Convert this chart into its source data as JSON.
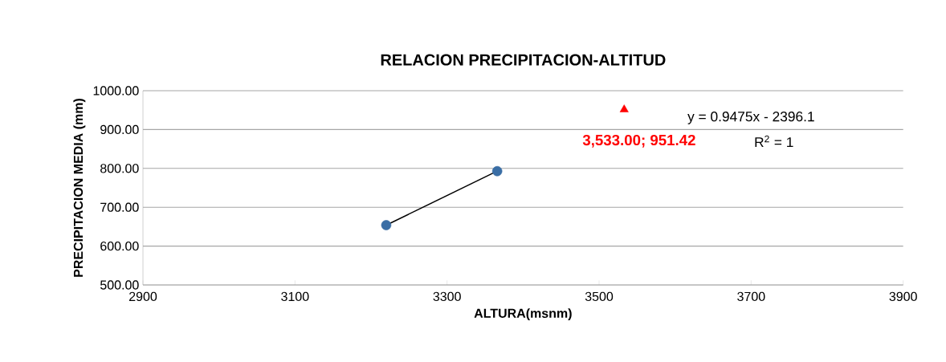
{
  "chart_data": {
    "type": "scatter",
    "title": "RELACION PRECIPITACION-ALTITUD",
    "xlabel": "ALTURA(msnm)",
    "ylabel": "PRECIPITACION MEDIA (mm)",
    "series": [
      {
        "color": "#3a6ea5",
        "marker": "circle",
        "x": [
          3220,
          3366
        ],
        "values": [
          654,
          793
        ]
      },
      {
        "type": "line",
        "color": "#000000",
        "marker": "none",
        "line_style": "solid",
        "x": [
          3220,
          3366
        ],
        "values": [
          654,
          793
        ]
      },
      {
        "color": "#ff0000",
        "marker": "triangle",
        "x": [
          3533
        ],
        "values": [
          951.42
        ]
      }
    ],
    "annotations": [
      "y = 0.9475x - 2396.1",
      "R$^{2}$ = 1",
      {
        "text": "3,533.00; 951.42",
        "x": 3533,
        "y": 951.42
      }
    ],
    "xlim": [
      2900,
      3900
    ],
    "xticks": [
      2900,
      3100,
      3300,
      3500,
      3700,
      3900
    ],
    "ylim": [
      500,
      1000
    ],
    "yticks": [
      {
        "value": 500,
        "label": "500.00"
      },
      {
        "value": 600,
        "label": "600.00"
      },
      {
        "value": 700,
        "label": "700.00"
      },
      {
        "value": 800,
        "label": "800.00"
      },
      {
        "value": 900,
        "label": "900.00"
      },
      {
        "value": 1000,
        "label": "1000.00"
      }
    ],
    "grid": "y"
  }
}
